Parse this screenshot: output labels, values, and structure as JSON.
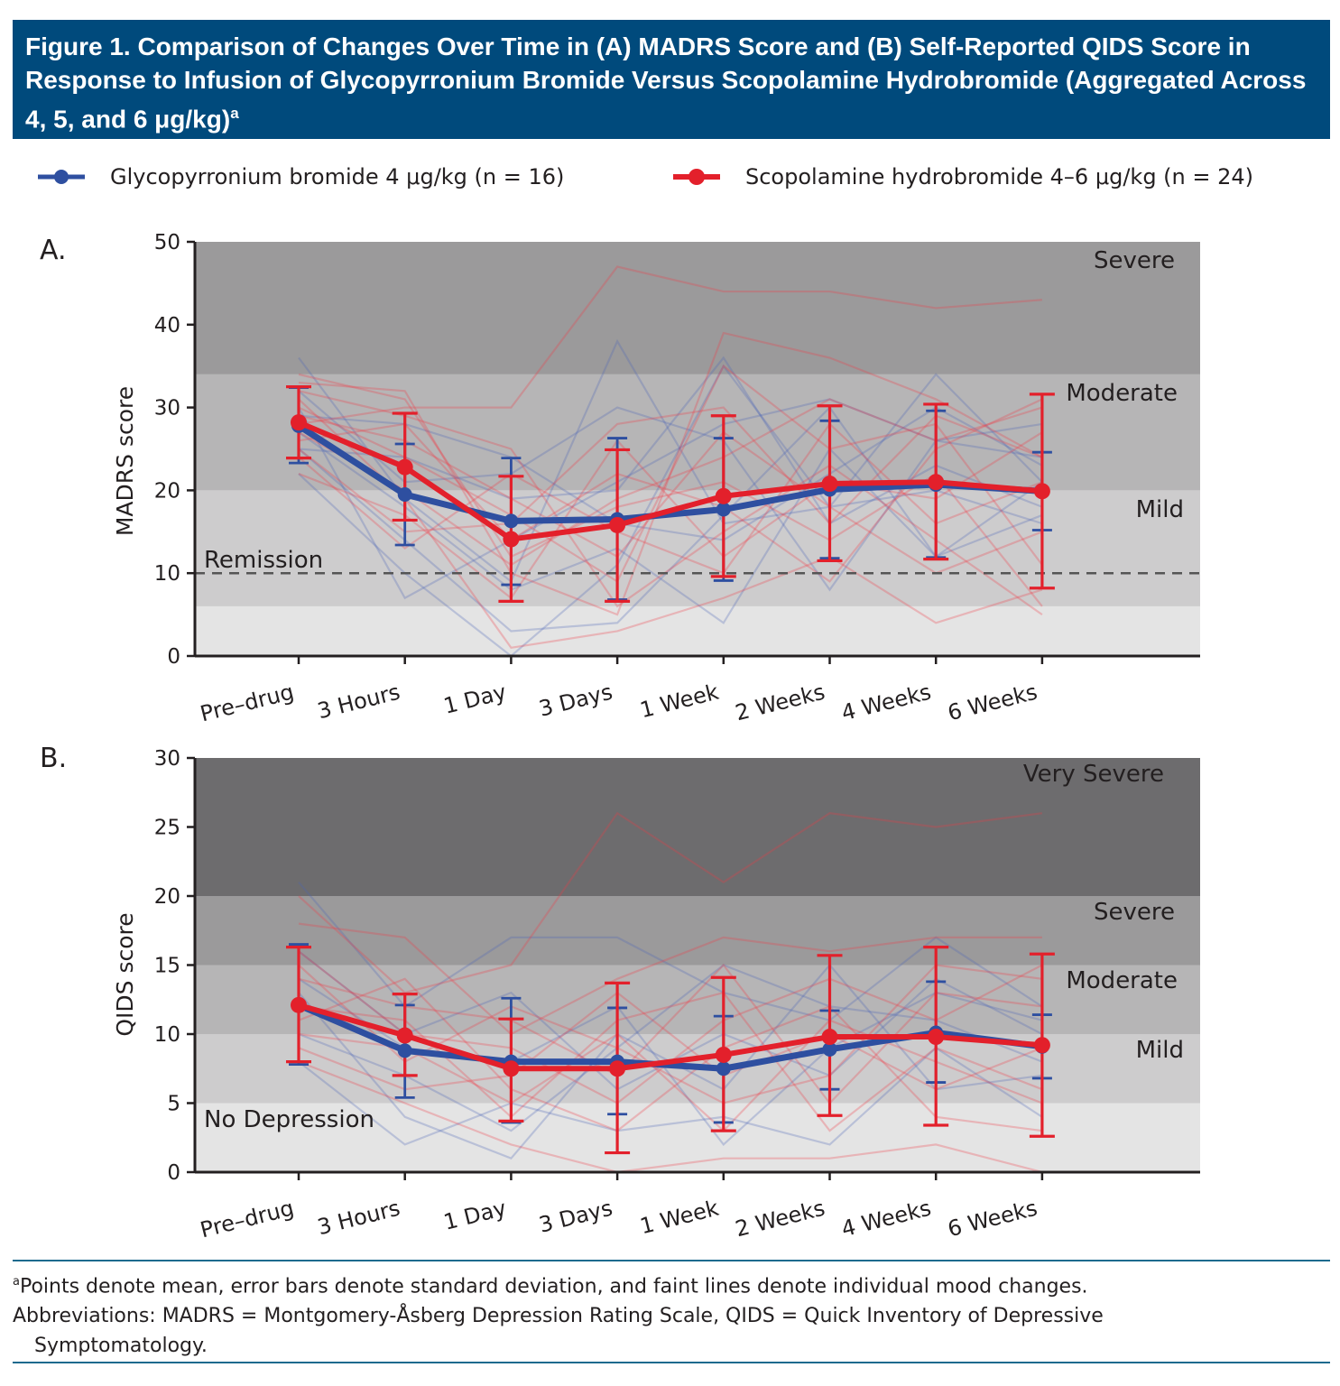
{
  "title": {
    "text": "Figure 1. Comparison of Changes Over Time in (A) MADRS Score and (B) Self-Reported QIDS Score in Response to Infusion of Glycopyrronium Bromide Versus Scopolamine Hydrobromide (Aggregated Across 4, 5, and 6 μg/kg)",
    "superscript": "a"
  },
  "legend": [
    {
      "label": "Glycopyrronium bromide 4 μg/kg (n = 16)",
      "color": "#2e4fa0"
    },
    {
      "label": "Scopolamine hydrobromide 4–6 μg/kg (n = 24)",
      "color": "#e3202b"
    }
  ],
  "chart_data": [
    {
      "type": "line",
      "panel_label": "A.",
      "ylabel": "MADRS score",
      "ylim": [
        0,
        50
      ],
      "yticks": [
        "0",
        "10",
        "20",
        "30",
        "40",
        "50"
      ],
      "categories": [
        "Pre–drug",
        "3 Hours",
        "1 Day",
        "3 Days",
        "1 Week",
        "2 Weeks",
        "4 Weeks",
        "6 Weeks"
      ],
      "bands": [
        {
          "from": 0,
          "to": 6,
          "color": "#e4e4e4"
        },
        {
          "from": 6,
          "to": 20,
          "color": "#cdcccd",
          "label": "Mild"
        },
        {
          "from": 20,
          "to": 34,
          "color": "#b6b5b6",
          "label": "Moderate"
        },
        {
          "from": 34,
          "to": 50,
          "color": "#9b9a9b",
          "label": "Severe"
        }
      ],
      "reference_line": {
        "value": 10,
        "label": "Remission",
        "style": "dashed"
      },
      "series": [
        {
          "name": "Glycopyrronium bromide 4 μg/kg (n = 16)",
          "color": "#2e4fa0",
          "values": [
            27.8,
            19.5,
            16.3,
            16.5,
            17.7,
            20.1,
            20.7,
            19.9
          ],
          "sd_low": [
            23.3,
            13.4,
            8.6,
            6.8,
            9.1,
            11.8,
            11.9,
            15.2
          ],
          "sd_high": [
            32.4,
            25.6,
            23.9,
            26.3,
            26.3,
            28.4,
            29.6,
            24.6
          ]
        },
        {
          "name": "Scopolamine hydrobromide 4–6 μg/kg (n = 24)",
          "color": "#e3202b",
          "values": [
            28.2,
            22.8,
            14.1,
            15.8,
            19.3,
            20.8,
            21.0,
            19.9
          ],
          "sd_low": [
            23.9,
            16.4,
            6.6,
            6.6,
            9.6,
            11.5,
            11.7,
            8.2
          ],
          "sd_high": [
            32.5,
            29.3,
            21.7,
            24.9,
            29.0,
            30.2,
            30.4,
            31.6
          ]
        }
      ],
      "individual_lines": {
        "glyco": [
          [
            36,
            19,
            9,
            38,
            16,
            18,
            34,
            21
          ],
          [
            30,
            7,
            14,
            21,
            28,
            31,
            26,
            24
          ],
          [
            25,
            14,
            3,
            4,
            17,
            30,
            12,
            17
          ],
          [
            32,
            21,
            22,
            30,
            26,
            8,
            26,
            28
          ],
          [
            22,
            10,
            0,
            11,
            35,
            18,
            20,
            16
          ],
          [
            29,
            28,
            24,
            16,
            14,
            22,
            30,
            23
          ],
          [
            27,
            18,
            8,
            13,
            4,
            25,
            12,
            21
          ],
          [
            25,
            24,
            19,
            20,
            36,
            16,
            23,
            18
          ]
        ],
        "scop": [
          [
            28,
            30,
            30,
            47,
            44,
            44,
            42,
            43
          ],
          [
            33,
            32,
            10,
            5,
            39,
            36,
            31,
            24
          ],
          [
            31,
            19,
            1,
            3,
            7,
            12,
            4,
            8
          ],
          [
            26,
            28,
            14,
            22,
            18,
            9,
            25,
            31
          ],
          [
            30,
            24,
            17,
            9,
            35,
            25,
            28,
            11
          ],
          [
            24,
            13,
            22,
            15,
            10,
            28,
            16,
            21
          ],
          [
            34,
            31,
            12,
            18,
            21,
            14,
            22,
            6
          ],
          [
            22,
            17,
            7,
            26,
            12,
            21,
            19,
            27
          ],
          [
            29,
            26,
            19,
            12,
            27,
            18,
            10,
            15
          ],
          [
            27,
            20,
            11,
            19,
            24,
            31,
            26,
            30
          ],
          [
            32,
            29,
            25,
            6,
            15,
            23,
            14,
            5
          ],
          [
            25,
            15,
            16,
            28,
            30,
            16,
            29,
            24
          ]
        ]
      }
    },
    {
      "type": "line",
      "panel_label": "B.",
      "ylabel": "QIDS score",
      "ylim": [
        0,
        30
      ],
      "yticks": [
        "0",
        "5",
        "10",
        "15",
        "20",
        "25",
        "30"
      ],
      "categories": [
        "Pre–drug",
        "3 Hours",
        "1 Day",
        "3 Days",
        "1 Week",
        "2 Weeks",
        "4 Weeks",
        "6 Weeks"
      ],
      "bands": [
        {
          "from": 0,
          "to": 5,
          "color": "#e4e4e4",
          "label": "No Depression"
        },
        {
          "from": 5,
          "to": 10,
          "color": "#cdcccd",
          "label": "Mild"
        },
        {
          "from": 10,
          "to": 15,
          "color": "#b6b5b6",
          "label": "Moderate"
        },
        {
          "from": 15,
          "to": 20,
          "color": "#9b9a9b",
          "label": "Severe"
        },
        {
          "from": 20,
          "to": 30,
          "color": "#6d6c6e",
          "label": "Very Severe"
        }
      ],
      "series": [
        {
          "name": "Glycopyrronium bromide 4 μg/kg (n = 16)",
          "color": "#2e4fa0",
          "values": [
            12.1,
            8.8,
            8.0,
            8.0,
            7.5,
            8.9,
            10.1,
            9.1
          ],
          "sd_low": [
            7.8,
            5.4,
            3.6,
            4.2,
            3.6,
            6.0,
            6.5,
            6.8
          ],
          "sd_high": [
            16.5,
            12.1,
            12.6,
            11.9,
            11.3,
            11.7,
            13.8,
            11.4
          ]
        },
        {
          "name": "Scopolamine hydrobromide 4–6 μg/kg (n = 24)",
          "color": "#e3202b",
          "values": [
            12.1,
            9.9,
            7.5,
            7.5,
            8.5,
            9.8,
            9.8,
            9.2
          ],
          "sd_low": [
            8.0,
            7.0,
            3.7,
            1.4,
            3.0,
            4.1,
            3.4,
            2.6
          ],
          "sd_high": [
            16.3,
            12.9,
            11.1,
            13.7,
            14.1,
            15.7,
            16.3,
            15.8
          ]
        }
      ],
      "individual_lines": {
        "glyco": [
          [
            21,
            12,
            17,
            17,
            13,
            11,
            17,
            12
          ],
          [
            8,
            2,
            5,
            3,
            4,
            2,
            9,
            4
          ],
          [
            13,
            4,
            1,
            10,
            6,
            15,
            6,
            7
          ],
          [
            16,
            10,
            13,
            6,
            10,
            7,
            14,
            10
          ],
          [
            10,
            7,
            3,
            9,
            15,
            12,
            11,
            8
          ],
          [
            14,
            9,
            8,
            12,
            2,
            9,
            13,
            11
          ]
        ],
        "scop": [
          [
            20,
            13,
            15,
            26,
            21,
            26,
            25,
            26
          ],
          [
            18,
            17,
            10,
            14,
            17,
            16,
            17,
            17
          ],
          [
            8,
            5,
            2,
            0,
            1,
            1,
            2,
            0
          ],
          [
            11,
            14,
            6,
            3,
            9,
            12,
            4,
            3
          ],
          [
            15,
            8,
            12,
            9,
            5,
            7,
            15,
            14
          ],
          [
            12,
            11,
            4,
            11,
            13,
            3,
            9,
            6
          ],
          [
            16,
            10,
            9,
            5,
            11,
            14,
            11,
            15
          ],
          [
            9,
            6,
            7,
            13,
            7,
            10,
            6,
            9
          ],
          [
            14,
            12,
            11,
            7,
            15,
            5,
            13,
            12
          ],
          [
            10,
            9,
            5,
            10,
            3,
            11,
            8,
            5
          ]
        ]
      }
    }
  ],
  "footnotes": {
    "a_marker": "a",
    "a_text": "Points denote mean, error bars denote standard deviation, and faint lines denote individual mood changes.",
    "abbrev_line1": "Abbreviations: MADRS = Montgomery-Åsberg Depression Rating Scale, QIDS = Quick Inventory of Depressive",
    "abbrev_line2": "Symptomatology."
  }
}
